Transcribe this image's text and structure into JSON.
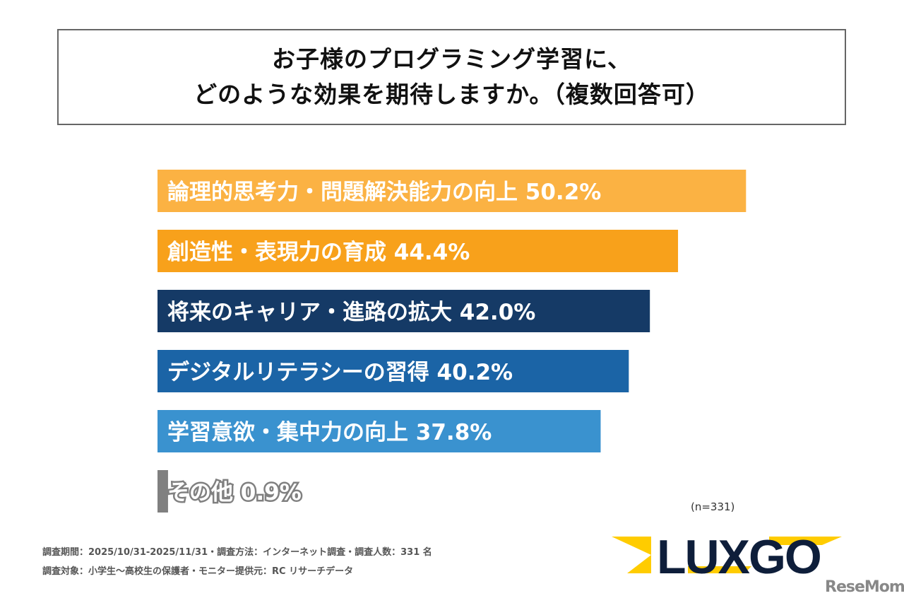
{
  "title": {
    "line1": "お子様のプログラミング学習に、",
    "line2": "どのような効果を期待しますか。（複数回答可）"
  },
  "chart_data": {
    "type": "bar",
    "orientation": "horizontal",
    "categories": [
      "論理的思考力・問題解決能力の向上",
      "創造性・表現力の育成",
      "将来のキャリア・進路の拡大",
      "デジタルリテラシーの習得",
      "学習意欲・集中力の向上",
      "その他"
    ],
    "values": [
      50.2,
      44.4,
      42.0,
      40.2,
      37.8,
      0.9
    ],
    "value_labels": [
      "50.2%",
      "44.4%",
      "42.0%",
      "40.2%",
      "37.8%",
      "0.9%"
    ],
    "colors": [
      "#FBB243",
      "#F8A11B",
      "#153A66",
      "#1B64A6",
      "#3A92CF",
      "#808080"
    ],
    "unit": "%",
    "grid": false,
    "legend": "none"
  },
  "sample_size": "(n=331)",
  "footnotes": [
    "調査期間：2025/10/31-2025/11/31・調査方法：インターネット調査・調査人数：331 名",
    "調査対象：小学生〜高校生の保護者・モニター提供元：RC リサーチデータ"
  ],
  "logo": {
    "text": "LUXGO",
    "colors": [
      "#FFCC00",
      "#0E1E3A"
    ]
  },
  "watermark": "ReseMom"
}
